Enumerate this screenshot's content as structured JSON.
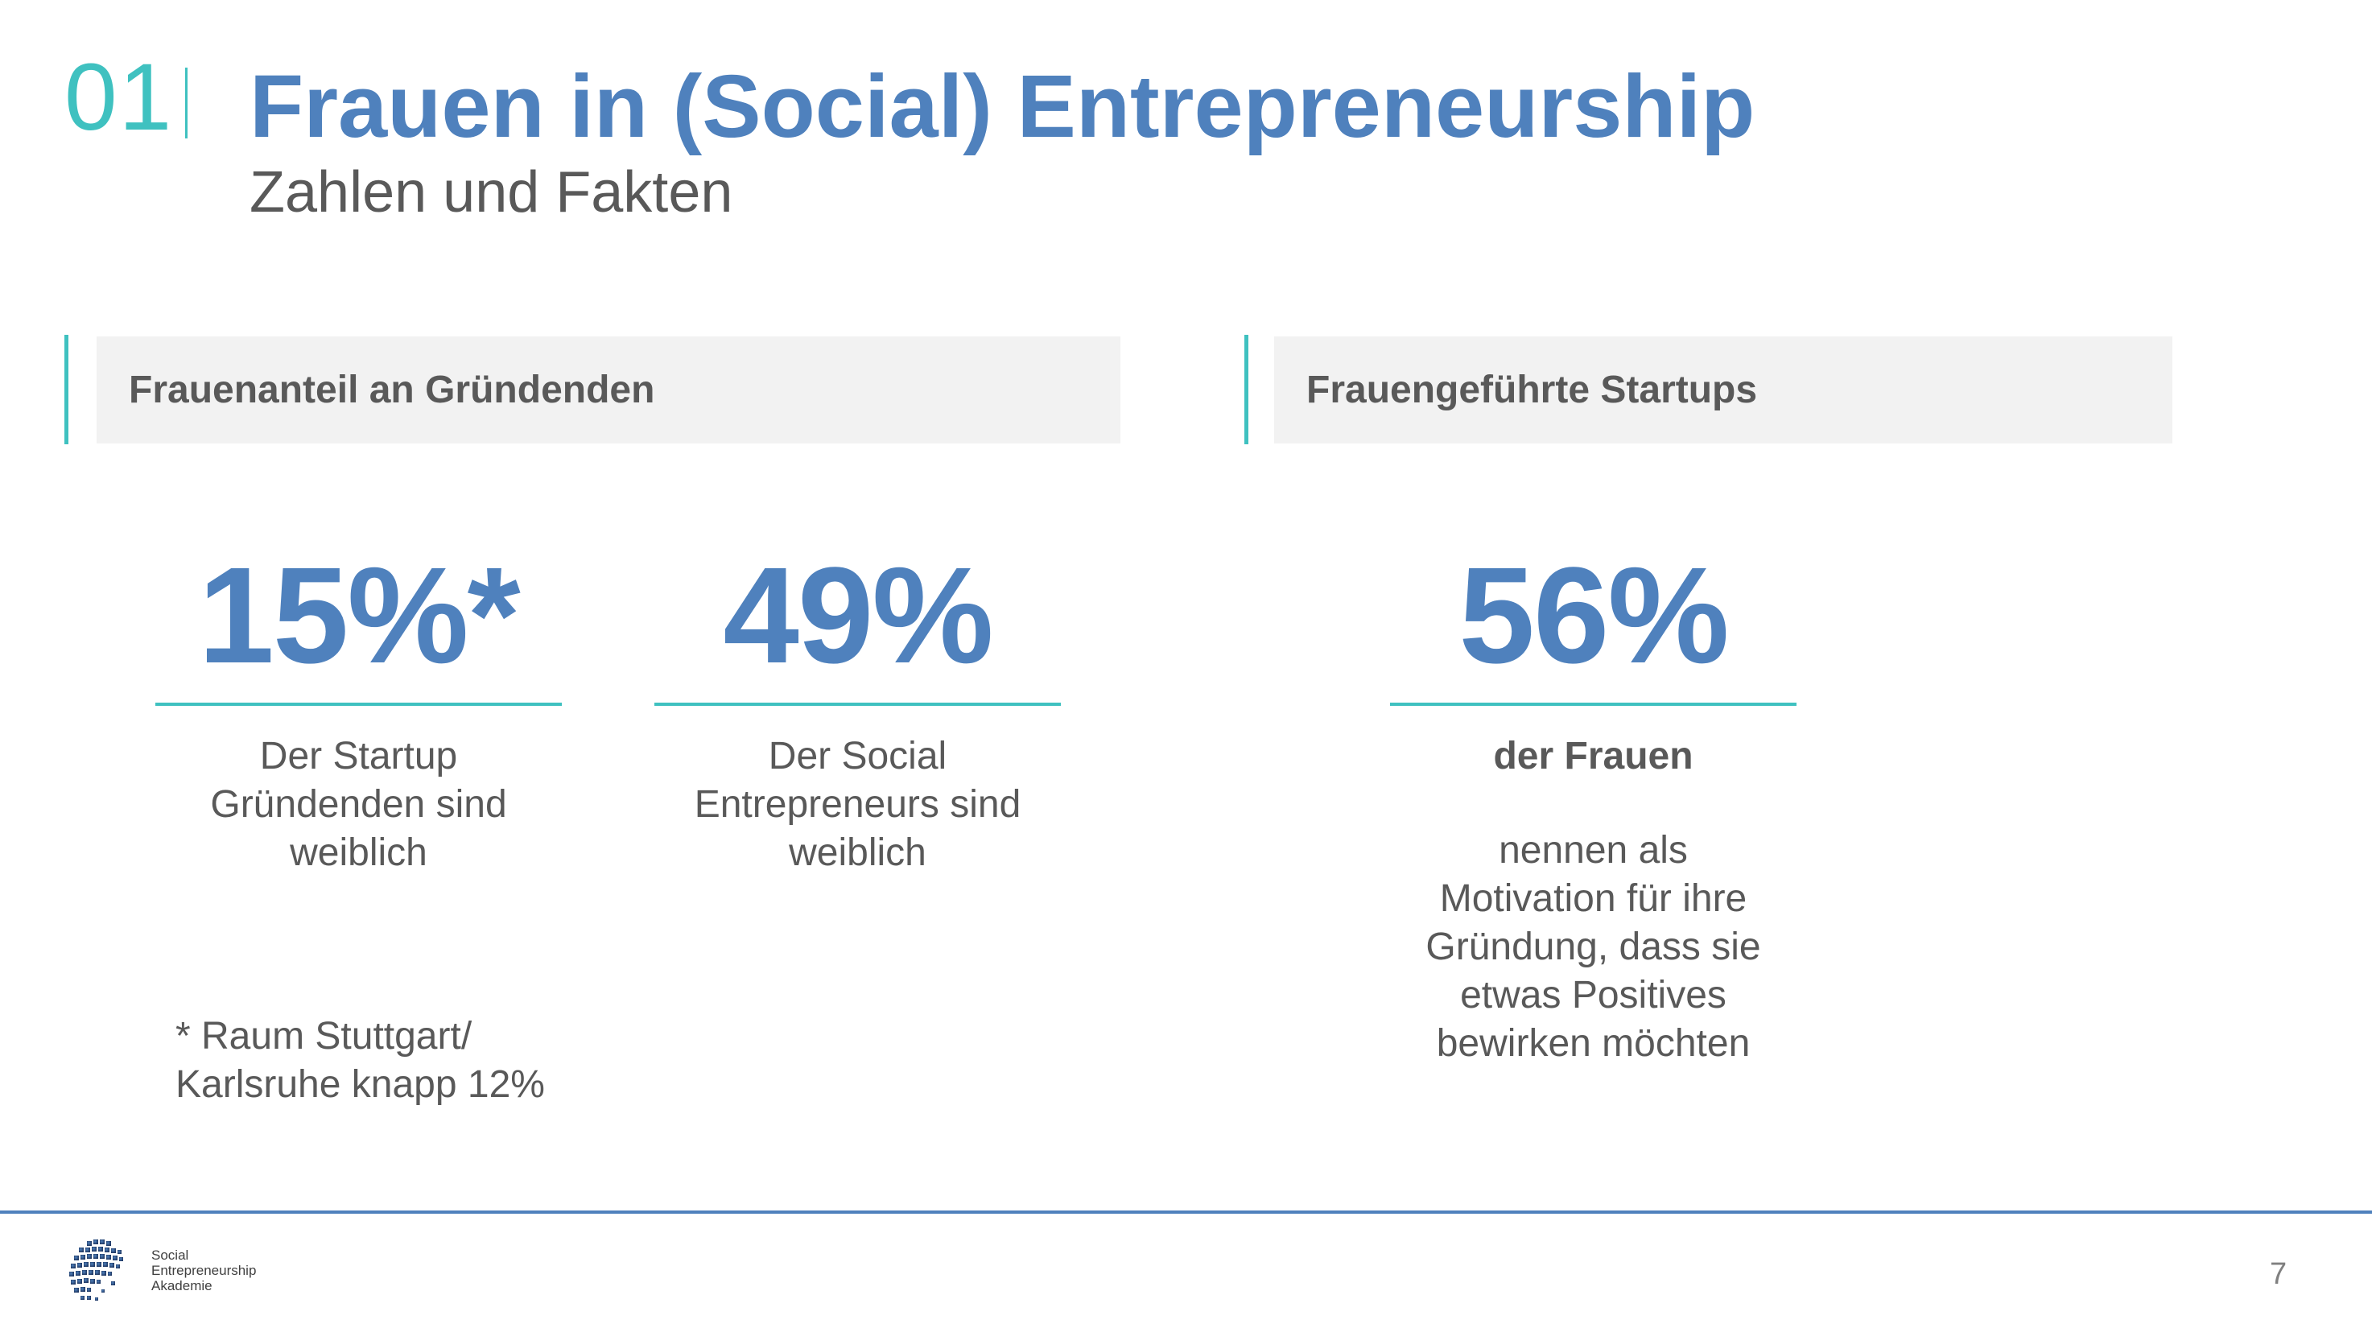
{
  "header": {
    "section_number": "01",
    "title": "Frauen in (Social) Entrepreneurship",
    "subtitle": "Zahlen und Fakten"
  },
  "sections": [
    {
      "label": "Frauenanteil an Gründenden",
      "stats": [
        {
          "value": "15%*",
          "lines": [
            "Der Startup",
            "Gründenden sind",
            "weiblich"
          ]
        },
        {
          "value": "49%",
          "lines": [
            "Der Social",
            "Entrepreneurs sind",
            "weiblich"
          ]
        }
      ],
      "footnote": [
        "* Raum Stuttgart/",
        "Karlsruhe knapp 12%"
      ]
    },
    {
      "label": "Frauengeführte Startups",
      "stats": [
        {
          "value": "56%",
          "bold_line": "der Frauen",
          "lines": [
            "nennen als",
            "Motivation für ihre",
            "Gründung, dass sie",
            "etwas Positives",
            "bewirken möchten"
          ]
        }
      ]
    }
  ],
  "footer": {
    "logo_lines": [
      "Social",
      "Entrepreneurship",
      "Akademie"
    ],
    "page_number": "7"
  },
  "colors": {
    "accent_teal": "#3fc1c0",
    "brand_blue": "#4f81bd",
    "text_gray": "#595959",
    "box_gray": "#f2f2f2"
  }
}
